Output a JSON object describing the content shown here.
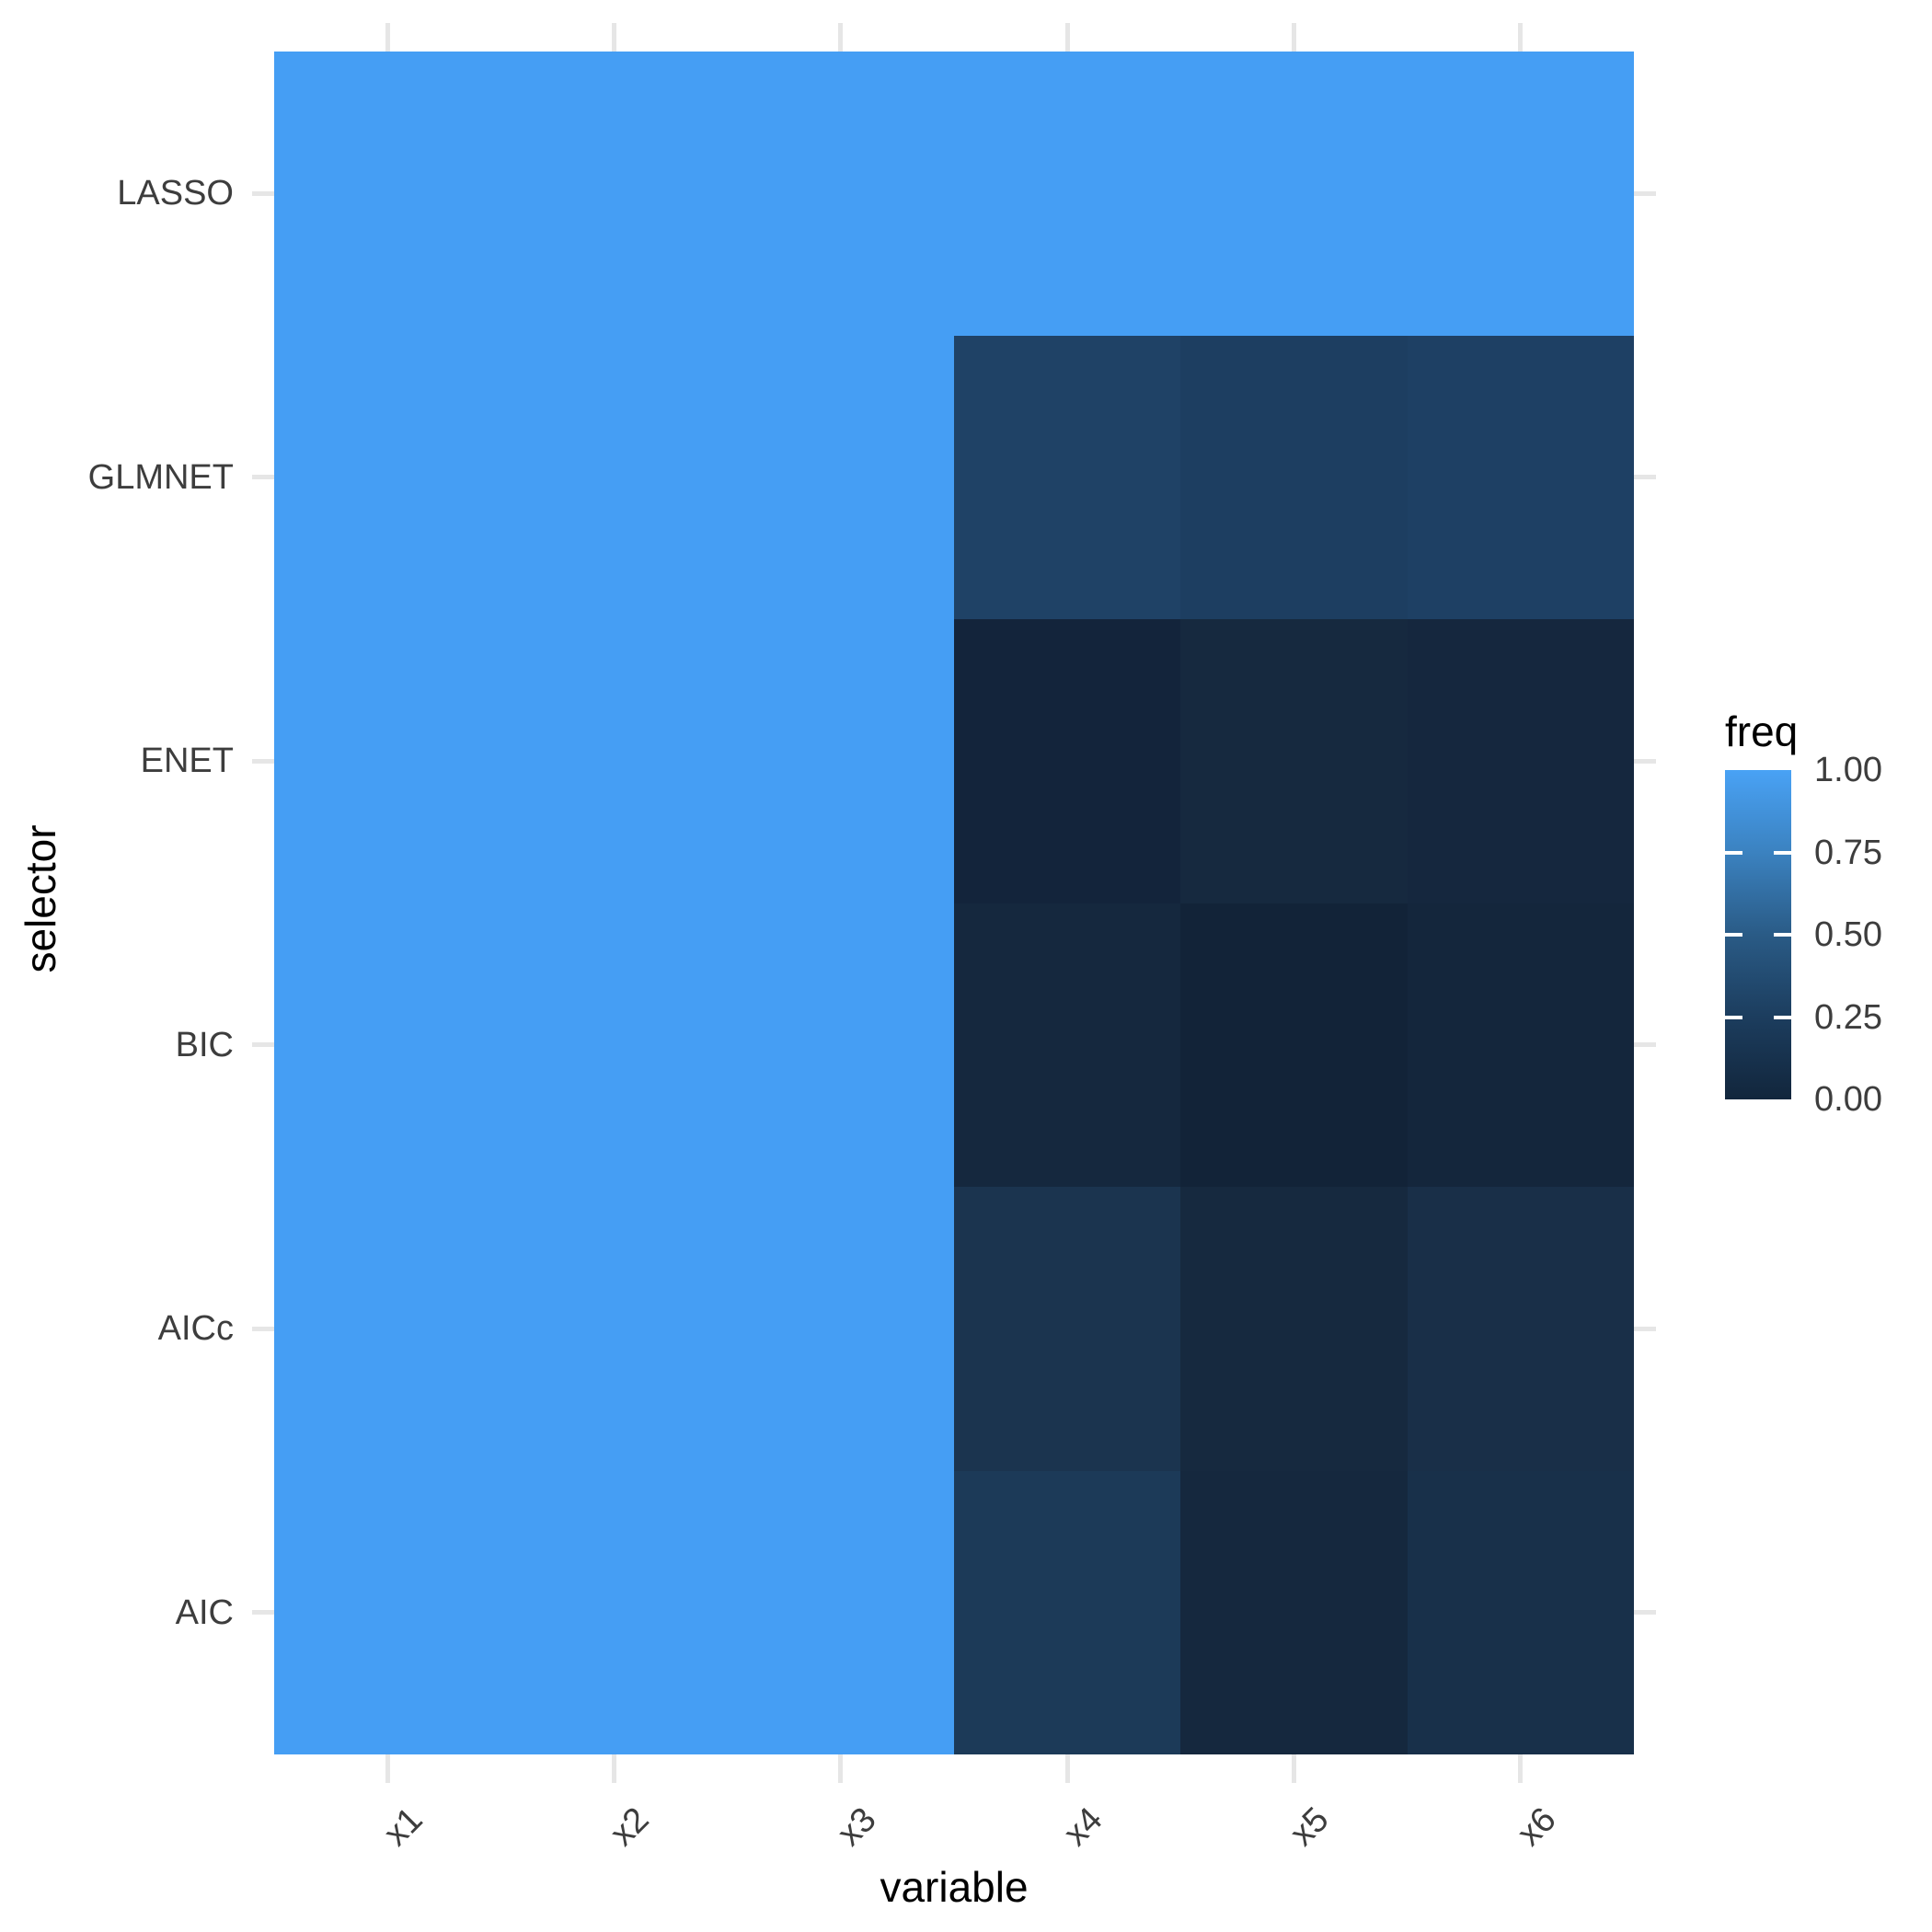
{
  "chart_data": {
    "type": "heatmap",
    "title": "",
    "xlabel": "variable",
    "ylabel": "selector",
    "x_categories": [
      "x1",
      "x2",
      "x3",
      "x4",
      "x5",
      "x6"
    ],
    "y_categories_top_to_bottom": [
      "LASSO",
      "GLMNET",
      "ENET",
      "BIC",
      "AICc",
      "AIC"
    ],
    "fill_variable": "freq",
    "fill_range": [
      0.0,
      1.0
    ],
    "grid": "minimal-theme, light gray segments at panel margins only",
    "series": [
      {
        "name": "LASSO",
        "values": [
          1.0,
          1.0,
          1.0,
          1.0,
          1.0,
          1.0
        ]
      },
      {
        "name": "GLMNET",
        "values": [
          1.0,
          1.0,
          1.0,
          0.23,
          0.2,
          0.22
        ]
      },
      {
        "name": "ENET",
        "values": [
          1.0,
          1.0,
          1.0,
          0.01,
          0.05,
          0.03
        ]
      },
      {
        "name": "BIC",
        "values": [
          1.0,
          1.0,
          1.0,
          0.04,
          0.0,
          0.02
        ]
      },
      {
        "name": "AICc",
        "values": [
          1.0,
          1.0,
          1.0,
          0.12,
          0.05,
          0.09
        ]
      },
      {
        "name": "AIC",
        "values": [
          1.0,
          1.0,
          1.0,
          0.15,
          0.04,
          0.1
        ]
      }
    ],
    "cell_colors": [
      [
        "#459EF4",
        "#459EF4",
        "#459EF4",
        "#459EF4",
        "#459EF4",
        "#459EF4"
      ],
      [
        "#459EF4",
        "#459EF4",
        "#459EF4",
        "#1F4266",
        "#1D3E61",
        "#1E4064"
      ],
      [
        "#459EF4",
        "#459EF4",
        "#459EF4",
        "#13243B",
        "#16293F",
        "#15273E"
      ],
      [
        "#459EF4",
        "#459EF4",
        "#459EF4",
        "#15283E",
        "#122338",
        "#14263C"
      ],
      [
        "#459EF4",
        "#459EF4",
        "#459EF4",
        "#1B344F",
        "#16293F",
        "#192F48"
      ],
      [
        "#459EF4",
        "#459EF4",
        "#459EF4",
        "#1C3A58",
        "#15283E",
        "#18304A"
      ]
    ],
    "legend": {
      "title": "freq",
      "position": "right",
      "tick_labels": [
        "1.00",
        "0.75",
        "0.50",
        "0.25",
        "0.00"
      ],
      "tick_values": [
        1.0,
        0.75,
        0.5,
        0.25,
        0.0
      ],
      "gradient_high_color": "#49A2F5",
      "gradient_low_color": "#12263C",
      "gradient_stops_top_to_bottom": [
        "#49A2F5",
        "#3B82C0",
        "#2A5B86",
        "#1C3D5E",
        "#12263C"
      ]
    },
    "colors": {
      "grid_segment": "#E6E6E6",
      "axis_text": "#3D3D3D",
      "axis_title_text": "#000000",
      "background": "#FFFFFF",
      "legend_tick_marks": "#FFFFFF"
    }
  }
}
